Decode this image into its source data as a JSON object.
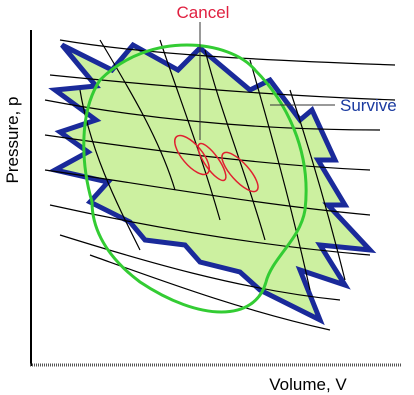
{
  "labels": {
    "cancel": "Cancel",
    "survive": "Survive",
    "y_axis": "Pressure, p",
    "x_axis": "Volume, V"
  }
}
